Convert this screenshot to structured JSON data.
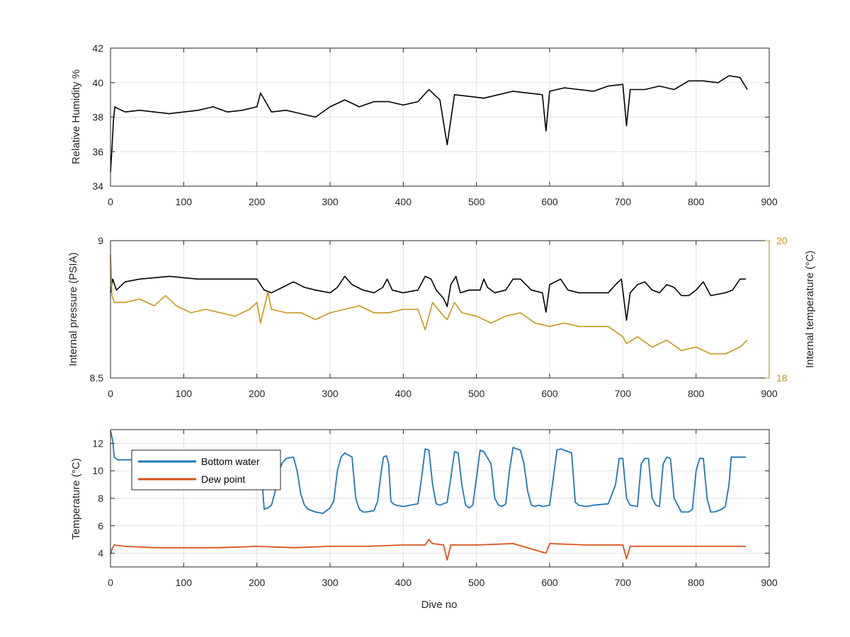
{
  "colors": {
    "humidity": "#000000",
    "pressure": "#000000",
    "internal_temperature": "#c8961a",
    "bottom_water": "#1f77b4",
    "dew_point": "#d95319",
    "grid": "#e2e2e2",
    "axis": "#262626"
  },
  "chart_data": [
    {
      "type": "line",
      "xlabel": "",
      "ylabel": "Relative Humidity %",
      "xlim": [
        0,
        900
      ],
      "ylim": [
        34,
        42
      ],
      "xticks": [
        0,
        100,
        200,
        300,
        400,
        500,
        600,
        700,
        800,
        900
      ],
      "yticks": [
        34,
        36,
        38,
        40,
        42
      ],
      "grid": true,
      "series": [
        {
          "x": [
            0,
            2,
            4,
            6,
            10,
            20,
            40,
            60,
            80,
            100,
            120,
            140,
            160,
            180,
            200,
            205,
            220,
            240,
            260,
            280,
            300,
            320,
            340,
            360,
            380,
            400,
            420,
            435,
            450,
            460,
            470,
            490,
            510,
            530,
            550,
            570,
            590,
            595,
            600,
            620,
            640,
            660,
            680,
            700,
            705,
            710,
            730,
            750,
            770,
            790,
            810,
            830,
            845,
            860,
            870
          ],
          "y": [
            34.8,
            36.2,
            37.8,
            38.6,
            38.5,
            38.3,
            38.4,
            38.3,
            38.2,
            38.3,
            38.4,
            38.6,
            38.3,
            38.4,
            38.6,
            39.4,
            38.3,
            38.4,
            38.2,
            38.0,
            38.6,
            39.0,
            38.6,
            38.9,
            38.9,
            38.7,
            38.9,
            39.6,
            39.0,
            36.4,
            39.3,
            39.2,
            39.1,
            39.3,
            39.5,
            39.4,
            39.3,
            37.2,
            39.5,
            39.7,
            39.6,
            39.5,
            39.8,
            39.9,
            37.5,
            39.6,
            39.6,
            39.8,
            39.6,
            40.1,
            40.1,
            40.0,
            40.4,
            40.3,
            39.6
          ]
        }
      ]
    },
    {
      "type": "line",
      "xlabel": "",
      "ylabel": "Internal pressure (PSIA)",
      "ylabel_right": "Internal temperature (°C)",
      "xlim": [
        0,
        900
      ],
      "ylim": [
        8.5,
        9
      ],
      "ylim_right": [
        18,
        20
      ],
      "xticks": [
        0,
        100,
        200,
        300,
        400,
        500,
        600,
        700,
        800,
        900
      ],
      "yticks": [
        8.5,
        9
      ],
      "yticks_right": [
        18,
        20
      ],
      "grid": true,
      "series": [
        {
          "axis": "left",
          "x": [
            0,
            3,
            8,
            20,
            40,
            60,
            80,
            100,
            120,
            140,
            160,
            180,
            200,
            210,
            220,
            235,
            250,
            265,
            280,
            300,
            310,
            320,
            330,
            345,
            360,
            372,
            378,
            385,
            400,
            420,
            430,
            438,
            445,
            455,
            460,
            465,
            472,
            478,
            490,
            505,
            510,
            515,
            525,
            540,
            550,
            560,
            575,
            590,
            595,
            600,
            615,
            625,
            640,
            660,
            680,
            690,
            698,
            705,
            710,
            720,
            730,
            740,
            750,
            760,
            770,
            780,
            790,
            800,
            810,
            820,
            840,
            850,
            860,
            868
          ],
          "y": [
            8.81,
            8.86,
            8.82,
            8.85,
            8.86,
            8.865,
            8.87,
            8.865,
            8.86,
            8.86,
            8.86,
            8.86,
            8.86,
            8.82,
            8.81,
            8.83,
            8.85,
            8.83,
            8.82,
            8.81,
            8.83,
            8.87,
            8.84,
            8.82,
            8.81,
            8.83,
            8.86,
            8.82,
            8.81,
            8.82,
            8.87,
            8.86,
            8.82,
            8.79,
            8.76,
            8.84,
            8.87,
            8.81,
            8.82,
            8.82,
            8.86,
            8.83,
            8.81,
            8.82,
            8.86,
            8.86,
            8.82,
            8.81,
            8.74,
            8.84,
            8.86,
            8.82,
            8.81,
            8.81,
            8.81,
            8.84,
            8.86,
            8.71,
            8.81,
            8.84,
            8.85,
            8.82,
            8.81,
            8.84,
            8.83,
            8.8,
            8.8,
            8.82,
            8.85,
            8.8,
            8.81,
            8.82,
            8.86,
            8.86
          ]
        },
        {
          "axis": "right",
          "x": [
            0,
            2,
            5,
            20,
            40,
            60,
            75,
            90,
            110,
            130,
            150,
            170,
            190,
            200,
            205,
            215,
            220,
            240,
            260,
            280,
            300,
            320,
            340,
            360,
            380,
            400,
            420,
            430,
            440,
            455,
            460,
            470,
            480,
            500,
            520,
            540,
            560,
            580,
            600,
            620,
            640,
            660,
            680,
            700,
            705,
            720,
            740,
            760,
            780,
            800,
            820,
            840,
            860,
            870
          ],
          "y": [
            19.8,
            19.2,
            19.1,
            19.1,
            19.15,
            19.05,
            19.2,
            19.05,
            18.95,
            19.0,
            18.95,
            18.9,
            19.0,
            19.1,
            18.8,
            19.25,
            19.0,
            18.95,
            18.95,
            18.85,
            18.95,
            19.0,
            19.05,
            18.95,
            18.95,
            19.0,
            19.0,
            18.7,
            19.1,
            18.9,
            18.85,
            19.1,
            18.95,
            18.9,
            18.8,
            18.9,
            18.95,
            18.8,
            18.75,
            18.8,
            18.75,
            18.75,
            18.75,
            18.6,
            18.5,
            18.6,
            18.45,
            18.55,
            18.4,
            18.45,
            18.35,
            18.35,
            18.45,
            18.55
          ]
        }
      ]
    },
    {
      "type": "line",
      "xlabel": "Dive no",
      "ylabel": "Temperature (°C)",
      "xlim": [
        0,
        900
      ],
      "ylim": [
        3,
        13
      ],
      "xticks": [
        0,
        100,
        200,
        300,
        400,
        500,
        600,
        700,
        800,
        900
      ],
      "yticks": [
        4,
        6,
        8,
        10,
        12
      ],
      "grid": true,
      "legend": "top-left",
      "series": [
        {
          "name": "Bottom water",
          "x": [
            0,
            3,
            5,
            10,
            30,
            100,
            150,
            200,
            205,
            210,
            215,
            220,
            225,
            230,
            235,
            240,
            250,
            255,
            260,
            265,
            270,
            280,
            290,
            300,
            305,
            310,
            315,
            320,
            330,
            335,
            340,
            345,
            350,
            360,
            365,
            370,
            373,
            377,
            380,
            383,
            386,
            390,
            400,
            420,
            425,
            430,
            435,
            440,
            445,
            450,
            460,
            465,
            470,
            475,
            480,
            485,
            490,
            495,
            500,
            505,
            510,
            520,
            525,
            530,
            535,
            540,
            545,
            550,
            560,
            565,
            570,
            575,
            580,
            585,
            590,
            600,
            610,
            615,
            620,
            625,
            630,
            635,
            640,
            650,
            660,
            680,
            690,
            695,
            700,
            705,
            710,
            720,
            725,
            730,
            735,
            740,
            745,
            750,
            755,
            760,
            765,
            770,
            775,
            780,
            785,
            790,
            795,
            800,
            805,
            810,
            815,
            820,
            825,
            830,
            835,
            840,
            845,
            848,
            855,
            868
          ],
          "y": [
            12.9,
            12.2,
            11.0,
            10.8,
            10.8,
            10.8,
            10.8,
            10.8,
            10.7,
            7.2,
            7.3,
            7.5,
            8.5,
            10.0,
            10.6,
            10.9,
            11.0,
            10.0,
            8.3,
            7.5,
            7.2,
            7.0,
            6.9,
            7.3,
            7.8,
            10.0,
            11.0,
            11.3,
            11.0,
            8.0,
            7.2,
            7.0,
            7.0,
            7.1,
            7.8,
            10.0,
            11.0,
            11.1,
            10.5,
            7.8,
            7.6,
            7.5,
            7.4,
            7.6,
            9.5,
            11.6,
            11.5,
            9.0,
            7.6,
            7.5,
            7.7,
            9.5,
            11.4,
            11.3,
            9.0,
            7.5,
            7.3,
            7.5,
            9.5,
            11.5,
            11.4,
            10.5,
            8.0,
            7.5,
            7.4,
            7.6,
            10.0,
            11.7,
            11.5,
            10.5,
            8.5,
            7.5,
            7.4,
            7.5,
            7.4,
            7.5,
            11.5,
            11.6,
            11.5,
            11.4,
            11.3,
            7.7,
            7.5,
            7.4,
            7.5,
            7.6,
            9.0,
            10.9,
            10.9,
            8.0,
            7.5,
            7.4,
            10.5,
            10.9,
            10.9,
            8.0,
            7.5,
            7.4,
            10.5,
            11.0,
            10.9,
            8.0,
            7.5,
            7.0,
            7.0,
            7.0,
            7.2,
            10.0,
            10.9,
            10.9,
            8.0,
            7.0,
            7.0,
            7.1,
            7.2,
            7.4,
            9.0,
            11.0,
            11.0,
            11.0
          ]
        },
        {
          "name": "Dew point",
          "x": [
            0,
            2,
            5,
            20,
            60,
            100,
            150,
            200,
            250,
            300,
            350,
            400,
            430,
            435,
            440,
            455,
            460,
            465,
            500,
            550,
            595,
            600,
            650,
            700,
            705,
            710,
            750,
            800,
            850,
            868
          ],
          "y": [
            3.9,
            4.3,
            4.6,
            4.5,
            4.4,
            4.4,
            4.4,
            4.5,
            4.4,
            4.5,
            4.5,
            4.6,
            4.6,
            5.0,
            4.7,
            4.6,
            3.5,
            4.6,
            4.6,
            4.7,
            4.0,
            4.7,
            4.6,
            4.6,
            3.6,
            4.5,
            4.5,
            4.5,
            4.5,
            4.5
          ]
        }
      ]
    }
  ]
}
